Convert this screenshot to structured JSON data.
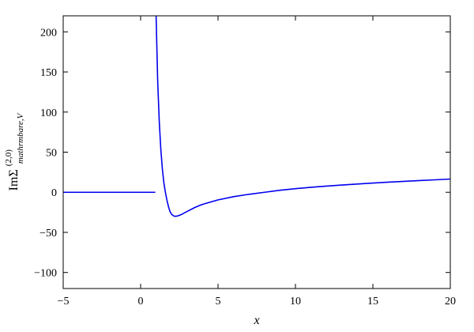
{
  "chart_data": {
    "type": "line",
    "title": "",
    "xlabel": "x",
    "ylabel": {
      "prefix": "ImΣ",
      "superscript": "(2,0)",
      "subscript": "mathrmbare,V"
    },
    "xlim": [
      -5,
      20
    ],
    "ylim": [
      -120,
      220
    ],
    "xticks": [
      -5,
      0,
      5,
      10,
      15,
      20
    ],
    "yticks": [
      -100,
      -50,
      0,
      50,
      100,
      150,
      200
    ],
    "xtick_labels": [
      "−5",
      "0",
      "5",
      "10",
      "15",
      "20"
    ],
    "ytick_labels": [
      "−100",
      "−50",
      "0",
      "50",
      "100",
      "150",
      "200"
    ],
    "grid": false,
    "legend": "none",
    "series": [
      {
        "color": "#0000ee",
        "segments": [
          [
            [
              -5,
              0
            ],
            [
              0.95,
              0
            ]
          ],
          [
            [
              1.0,
              220
            ],
            [
              1.05,
              180
            ],
            [
              1.1,
              140
            ],
            [
              1.2,
              90
            ],
            [
              1.3,
              55
            ],
            [
              1.4,
              30
            ],
            [
              1.5,
              12
            ],
            [
              1.6,
              0
            ],
            [
              1.7,
              -10
            ],
            [
              1.8,
              -18
            ],
            [
              1.9,
              -24
            ],
            [
              2.0,
              -27.5
            ],
            [
              2.1,
              -29
            ],
            [
              2.2,
              -30
            ],
            [
              2.4,
              -29.5
            ],
            [
              2.6,
              -28
            ],
            [
              3.0,
              -24
            ],
            [
              3.5,
              -19
            ],
            [
              4.0,
              -15
            ],
            [
              5.0,
              -9.5
            ],
            [
              6.0,
              -5.5
            ],
            [
              7.0,
              -2.5
            ],
            [
              8.0,
              0
            ],
            [
              9.0,
              2.5
            ],
            [
              10.0,
              4.5
            ],
            [
              11.0,
              6.2
            ],
            [
              12.0,
              7.7
            ],
            [
              13.0,
              9.0
            ],
            [
              14.0,
              10.3
            ],
            [
              15.0,
              11.5
            ],
            [
              16.0,
              12.6
            ],
            [
              17.0,
              13.6
            ],
            [
              18.0,
              14.6
            ],
            [
              19.0,
              15.5
            ],
            [
              20.0,
              16.5
            ]
          ]
        ]
      }
    ]
  }
}
